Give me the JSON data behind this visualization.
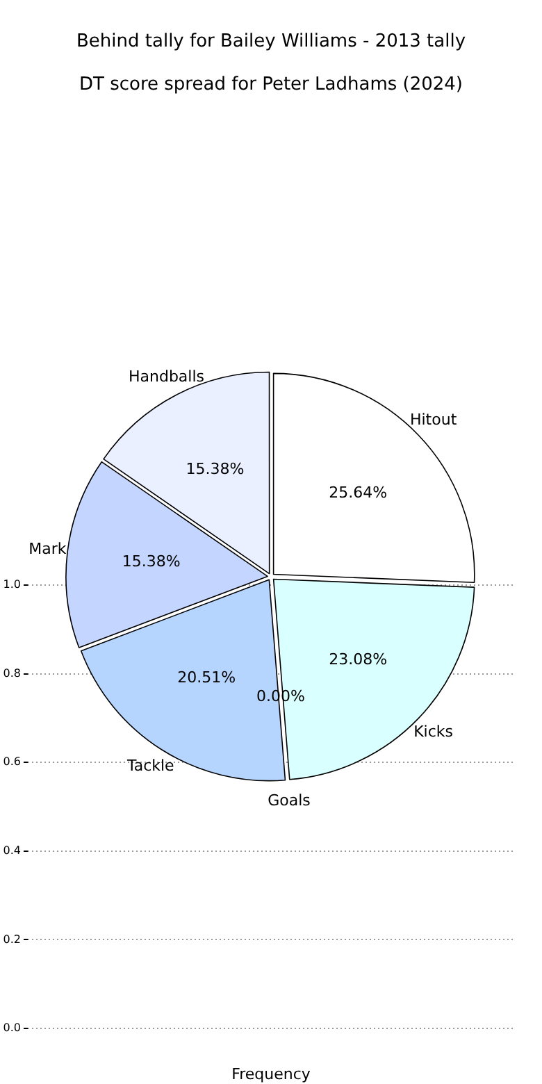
{
  "chart_data": [
    {
      "type": "pie",
      "title": "Behind tally for Bailey Williams - 2013 tally",
      "subtitle": "DT score spread for Peter Ladhams (2024)",
      "categories": [
        "Hitout",
        "Kicks",
        "Goals",
        "Tackle",
        "Mark",
        "Handballs"
      ],
      "values": [
        25.64,
        23.08,
        0.0,
        20.51,
        15.38,
        15.38
      ],
      "value_labels": [
        "25.64%",
        "23.08%",
        "0.00%",
        "20.51%",
        "15.38%",
        "15.38%"
      ],
      "colors": [
        "#ffffff",
        "#d9ffff",
        "#ffffff",
        "#b5d5ff",
        "#c4d6ff",
        "#eaf0ff"
      ]
    },
    {
      "type": "line",
      "xlabel": "Frequency",
      "categories": [
        null
      ],
      "values": [
        null
      ],
      "ylim": [
        0,
        1
      ],
      "yticks": [
        {
          "value": 0,
          "label": "0.0"
        },
        {
          "value": 0.2,
          "label": "0.2"
        },
        {
          "value": 0.4,
          "label": "0.4"
        },
        {
          "value": 0.6,
          "label": "0.6"
        },
        {
          "value": 0.8,
          "label": "0.8"
        },
        {
          "value": 1,
          "label": "1.0"
        }
      ],
      "grid": "y",
      "tick_labels": "y"
    }
  ]
}
